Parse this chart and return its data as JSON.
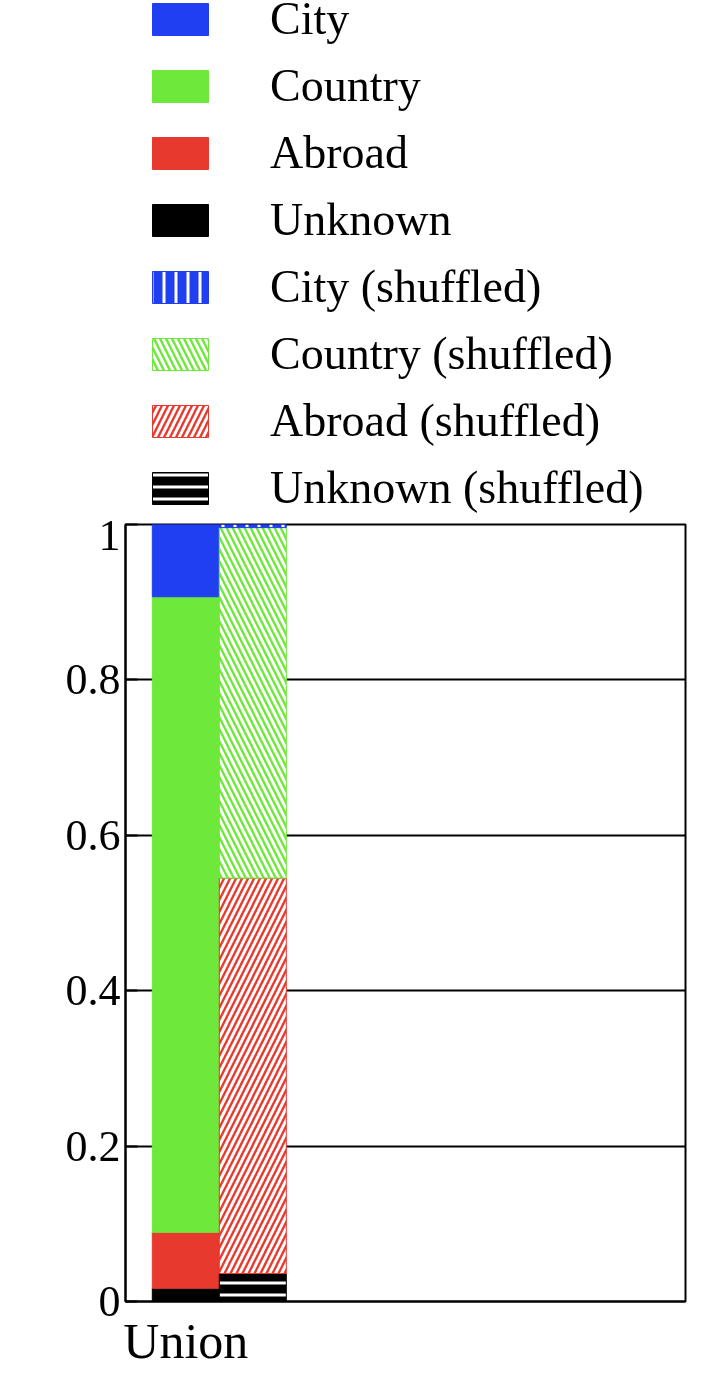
{
  "chart_data": {
    "type": "bar",
    "stacked": true,
    "categories": [
      "Union",
      null
    ],
    "ylim": [
      0,
      1
    ],
    "yticks": [
      0,
      0.2,
      0.4,
      0.6,
      0.8,
      1
    ],
    "grid": "y",
    "legend": "top",
    "series": [
      {
        "name": "Unknown",
        "color": "#000000",
        "values": [
          0.017,
          null
        ]
      },
      {
        "name": "Abroad",
        "color": "#e8392f",
        "values": [
          0.072,
          null
        ]
      },
      {
        "name": "Country",
        "color": "#6ee83a",
        "values": [
          0.818,
          null
        ]
      },
      {
        "name": "City",
        "color": "#1f3ff0",
        "values": [
          0.093,
          null
        ]
      },
      {
        "name": "Unknown (shuffled)",
        "color": "#000000",
        "values": [
          null,
          0.036
        ]
      },
      {
        "name": "Abroad (shuffled)",
        "color": "#e8392f",
        "values": [
          null,
          0.509
        ]
      },
      {
        "name": "Country (shuffled)",
        "color": "#6ee83a",
        "values": [
          null,
          0.451
        ]
      },
      {
        "name": "City (shuffled)",
        "color": "#1f3ff0",
        "values": [
          null,
          0.004
        ]
      }
    ]
  }
}
